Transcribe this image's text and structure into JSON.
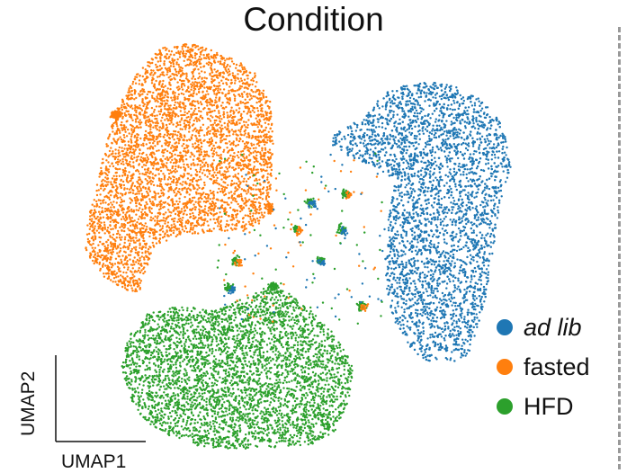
{
  "chart_data": {
    "type": "scatter",
    "title": "Condition",
    "xlabel": "UMAP1",
    "ylabel": "UMAP2",
    "grid": false,
    "legend_position": "right",
    "series": [
      {
        "name": "ad lib",
        "color": "#1f77b4"
      },
      {
        "name": "fasted",
        "color": "#ff7f0e"
      },
      {
        "name": "HFD",
        "color": "#2ca02c"
      }
    ]
  }
}
